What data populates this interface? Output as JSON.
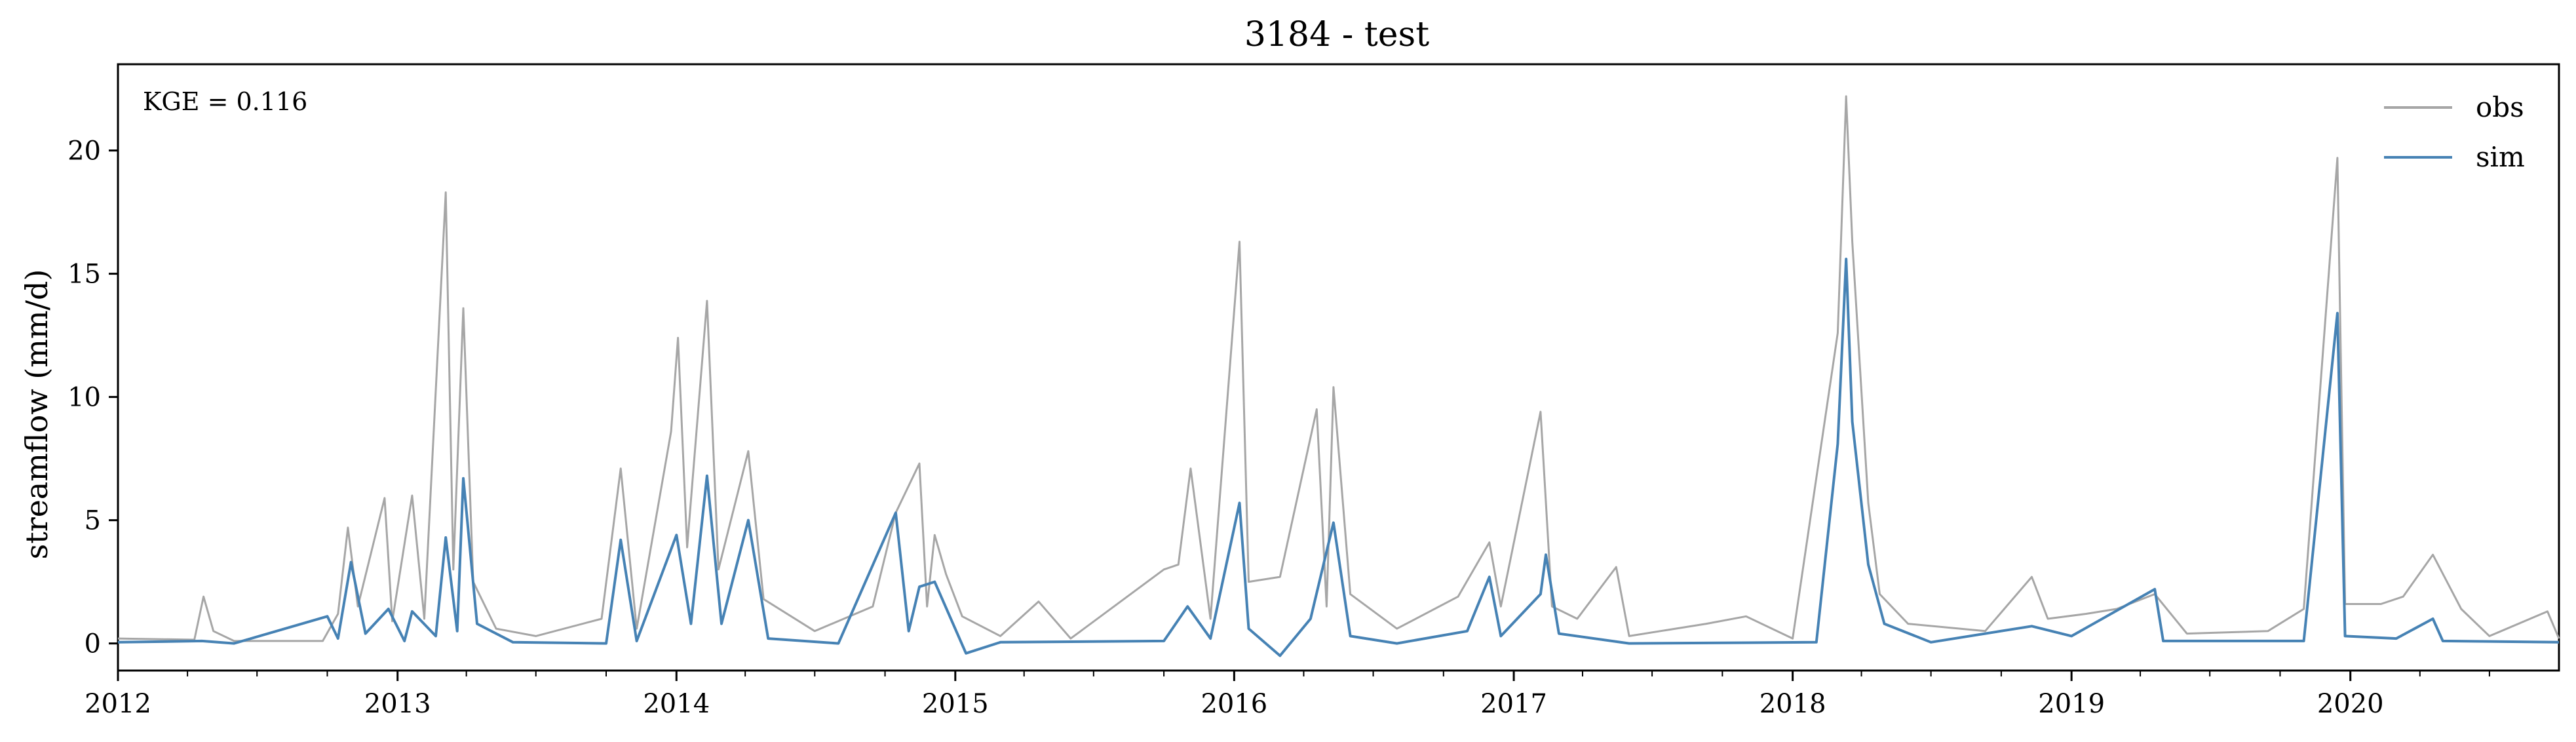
{
  "chart_data": {
    "type": "line",
    "title": "3184 - test",
    "xlabel": "",
    "ylabel": "streamflow (mm/d)",
    "annotation": "KGE = 0.116",
    "xlim": [
      "2012-01-01",
      "2020-09-30"
    ],
    "ylim": [
      -1.1,
      23.5
    ],
    "x_ticks": [
      "2012",
      "2013",
      "2014",
      "2015",
      "2016",
      "2017",
      "2018",
      "2019",
      "2020"
    ],
    "y_ticks": [
      0,
      5,
      10,
      15,
      20
    ],
    "legend": {
      "placement": "top-right",
      "entries": [
        "obs",
        "sim"
      ]
    },
    "grid": false,
    "series": [
      {
        "name": "obs",
        "color": "#a6a6a6",
        "points": [
          [
            "2012-01-01",
            0.2
          ],
          [
            "2012-04-10",
            0.15
          ],
          [
            "2012-04-22",
            1.9
          ],
          [
            "2012-05-05",
            0.5
          ],
          [
            "2012-06-01",
            0.1
          ],
          [
            "2012-09-25",
            0.1
          ],
          [
            "2012-10-15",
            1.2
          ],
          [
            "2012-10-28",
            4.7
          ],
          [
            "2012-11-10",
            1.5
          ],
          [
            "2012-12-15",
            5.9
          ],
          [
            "2012-12-25",
            0.9
          ],
          [
            "2013-01-20",
            6.0
          ],
          [
            "2013-02-05",
            1.0
          ],
          [
            "2013-03-05",
            18.3
          ],
          [
            "2013-03-15",
            3.0
          ],
          [
            "2013-03-28",
            13.6
          ],
          [
            "2013-04-10",
            2.5
          ],
          [
            "2013-05-10",
            0.6
          ],
          [
            "2013-07-01",
            0.3
          ],
          [
            "2013-09-25",
            1.0
          ],
          [
            "2013-10-20",
            7.1
          ],
          [
            "2013-11-10",
            0.6
          ],
          [
            "2013-12-25",
            8.6
          ],
          [
            "2014-01-03",
            12.4
          ],
          [
            "2014-01-15",
            3.9
          ],
          [
            "2014-02-10",
            13.9
          ],
          [
            "2014-02-25",
            3.0
          ],
          [
            "2014-04-05",
            7.8
          ],
          [
            "2014-04-25",
            1.8
          ],
          [
            "2014-07-01",
            0.5
          ],
          [
            "2014-09-15",
            1.5
          ],
          [
            "2014-10-15",
            5.3
          ],
          [
            "2014-11-15",
            7.3
          ],
          [
            "2014-11-25",
            1.5
          ],
          [
            "2014-12-05",
            4.4
          ],
          [
            "2014-12-20",
            2.8
          ],
          [
            "2015-01-10",
            1.1
          ],
          [
            "2015-03-01",
            0.3
          ],
          [
            "2015-04-20",
            1.7
          ],
          [
            "2015-06-01",
            0.2
          ],
          [
            "2015-10-01",
            3.0
          ],
          [
            "2015-10-20",
            3.2
          ],
          [
            "2015-11-05",
            7.1
          ],
          [
            "2015-12-01",
            1.0
          ],
          [
            "2016-01-08",
            16.3
          ],
          [
            "2016-01-20",
            2.5
          ],
          [
            "2016-03-01",
            2.7
          ],
          [
            "2016-04-18",
            9.5
          ],
          [
            "2016-05-01",
            1.5
          ],
          [
            "2016-05-10",
            10.4
          ],
          [
            "2016-06-01",
            2.0
          ],
          [
            "2016-08-01",
            0.6
          ],
          [
            "2016-10-20",
            1.9
          ],
          [
            "2016-11-30",
            4.1
          ],
          [
            "2016-12-15",
            1.5
          ],
          [
            "2017-02-05",
            9.4
          ],
          [
            "2017-02-20",
            1.5
          ],
          [
            "2017-03-25",
            1.0
          ],
          [
            "2017-05-15",
            3.1
          ],
          [
            "2017-06-01",
            0.3
          ],
          [
            "2017-09-10",
            0.8
          ],
          [
            "2017-11-01",
            1.1
          ],
          [
            "2018-01-01",
            0.2
          ],
          [
            "2018-03-01",
            12.6
          ],
          [
            "2018-03-12",
            22.2
          ],
          [
            "2018-03-20",
            16.3
          ],
          [
            "2018-04-10",
            5.7
          ],
          [
            "2018-04-25",
            2.0
          ],
          [
            "2018-06-01",
            0.8
          ],
          [
            "2018-09-10",
            0.5
          ],
          [
            "2018-11-10",
            2.7
          ],
          [
            "2018-12-01",
            1.0
          ],
          [
            "2019-01-20",
            1.2
          ],
          [
            "2019-03-01",
            1.4
          ],
          [
            "2019-04-20",
            2.0
          ],
          [
            "2019-06-01",
            0.4
          ],
          [
            "2019-09-15",
            0.5
          ],
          [
            "2019-11-01",
            1.4
          ],
          [
            "2019-12-15",
            19.7
          ],
          [
            "2019-12-25",
            1.6
          ],
          [
            "2020-02-10",
            1.6
          ],
          [
            "2020-03-10",
            1.9
          ],
          [
            "2020-04-18",
            3.6
          ],
          [
            "2020-05-25",
            1.4
          ],
          [
            "2020-07-01",
            0.3
          ],
          [
            "2020-09-15",
            1.3
          ],
          [
            "2020-09-30",
            0.2
          ]
        ]
      },
      {
        "name": "sim",
        "color": "#4682b4",
        "points": [
          [
            "2012-01-01",
            0.05
          ],
          [
            "2012-04-20",
            0.1
          ],
          [
            "2012-06-01",
            0.0
          ],
          [
            "2012-10-01",
            1.1
          ],
          [
            "2012-10-15",
            0.2
          ],
          [
            "2012-11-01",
            3.3
          ],
          [
            "2012-11-20",
            0.4
          ],
          [
            "2012-12-20",
            1.4
          ],
          [
            "2013-01-10",
            0.1
          ],
          [
            "2013-01-20",
            1.3
          ],
          [
            "2013-02-20",
            0.3
          ],
          [
            "2013-03-05",
            4.3
          ],
          [
            "2013-03-20",
            0.5
          ],
          [
            "2013-03-28",
            6.7
          ],
          [
            "2013-04-15",
            0.8
          ],
          [
            "2013-06-01",
            0.05
          ],
          [
            "2013-10-01",
            0.0
          ],
          [
            "2013-10-20",
            4.2
          ],
          [
            "2013-11-10",
            0.1
          ],
          [
            "2014-01-01",
            4.4
          ],
          [
            "2014-01-20",
            0.8
          ],
          [
            "2014-02-10",
            6.8
          ],
          [
            "2014-03-01",
            0.8
          ],
          [
            "2014-04-05",
            5.0
          ],
          [
            "2014-05-01",
            0.2
          ],
          [
            "2014-08-01",
            0.0
          ],
          [
            "2014-10-15",
            5.3
          ],
          [
            "2014-11-01",
            0.5
          ],
          [
            "2014-11-15",
            2.3
          ],
          [
            "2014-12-05",
            2.5
          ],
          [
            "2015-01-15",
            -0.4
          ],
          [
            "2015-03-01",
            0.05
          ],
          [
            "2015-10-01",
            0.1
          ],
          [
            "2015-11-01",
            1.5
          ],
          [
            "2015-12-01",
            0.2
          ],
          [
            "2016-01-08",
            5.7
          ],
          [
            "2016-01-20",
            0.6
          ],
          [
            "2016-03-01",
            -0.5
          ],
          [
            "2016-04-10",
            1.0
          ],
          [
            "2016-05-10",
            4.9
          ],
          [
            "2016-06-01",
            0.3
          ],
          [
            "2016-08-01",
            0.0
          ],
          [
            "2016-11-01",
            0.5
          ],
          [
            "2016-11-30",
            2.7
          ],
          [
            "2016-12-15",
            0.3
          ],
          [
            "2017-02-05",
            2.0
          ],
          [
            "2017-02-12",
            3.6
          ],
          [
            "2017-03-01",
            0.4
          ],
          [
            "2017-06-01",
            0.0
          ],
          [
            "2018-02-01",
            0.05
          ],
          [
            "2018-03-01",
            8.1
          ],
          [
            "2018-03-12",
            15.6
          ],
          [
            "2018-03-20",
            9.0
          ],
          [
            "2018-04-10",
            3.2
          ],
          [
            "2018-05-01",
            0.8
          ],
          [
            "2018-07-01",
            0.05
          ],
          [
            "2018-11-10",
            0.7
          ],
          [
            "2019-01-01",
            0.3
          ],
          [
            "2019-04-20",
            2.2
          ],
          [
            "2019-05-01",
            0.1
          ],
          [
            "2019-11-01",
            0.1
          ],
          [
            "2019-12-15",
            13.4
          ],
          [
            "2019-12-25",
            0.3
          ],
          [
            "2020-03-01",
            0.2
          ],
          [
            "2020-04-18",
            1.0
          ],
          [
            "2020-05-01",
            0.1
          ],
          [
            "2020-09-30",
            0.05
          ]
        ]
      }
    ]
  }
}
